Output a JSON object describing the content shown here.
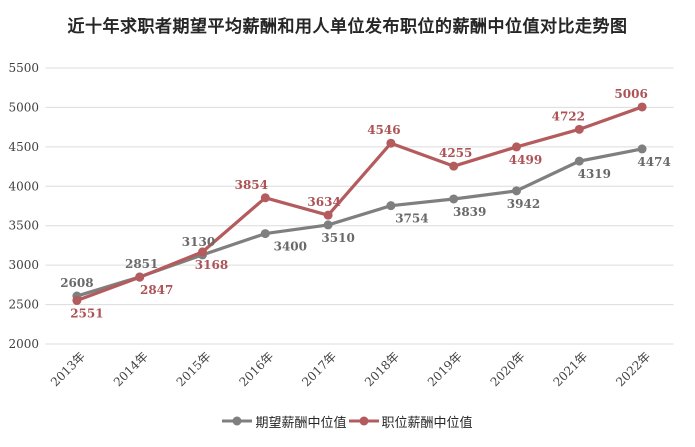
{
  "title": "近十年求职者期望平均薪酬和用人单位发布职位的薪酬中位值对比走势图",
  "chart_data": {
    "type": "line",
    "categories": [
      "2013年",
      "2014年",
      "2015年",
      "2016年",
      "2017年",
      "2018年",
      "2019年",
      "2020年",
      "2021年",
      "2022年"
    ],
    "series": [
      {
        "name": "期望薪酬中位值",
        "color": "#7f7f7f",
        "label_color": "#696969",
        "values": [
          2608,
          2851,
          3130,
          3400,
          3510,
          3754,
          3839,
          3942,
          4319,
          4474
        ],
        "label_pos": [
          "above",
          "above",
          "above",
          "below",
          "below",
          "below",
          "below",
          "below",
          "below",
          "below"
        ],
        "label_dx": [
          0,
          2,
          -4,
          25,
          10,
          21,
          16,
          7,
          15,
          12
        ]
      },
      {
        "name": "职位薪酬中位值",
        "color": "#b45b5d",
        "label_color": "#ac5356",
        "values": [
          2551,
          2847,
          3168,
          3854,
          3634,
          4546,
          4255,
          4499,
          4722,
          5006
        ],
        "label_pos": [
          "below",
          "below",
          "below",
          "above",
          "above",
          "above",
          "above",
          "below",
          "above",
          "above"
        ],
        "label_dx": [
          10,
          17,
          9,
          -14,
          -4,
          -7,
          2,
          9,
          -11,
          -11
        ]
      }
    ],
    "y_axis": {
      "min": 2000,
      "max": 5500,
      "step": 500,
      "tick_labels": [
        "2000",
        "2500",
        "3000",
        "3500",
        "4000",
        "4500",
        "5000",
        "5500"
      ]
    },
    "x_axis": {
      "label_rotation": -45
    },
    "grid": true,
    "legend_position": "bottom",
    "colors": {
      "gridline": "#dcdcdc",
      "tick_label": "#3f3f3f",
      "title": "#262626",
      "background": "#ffffff"
    }
  }
}
